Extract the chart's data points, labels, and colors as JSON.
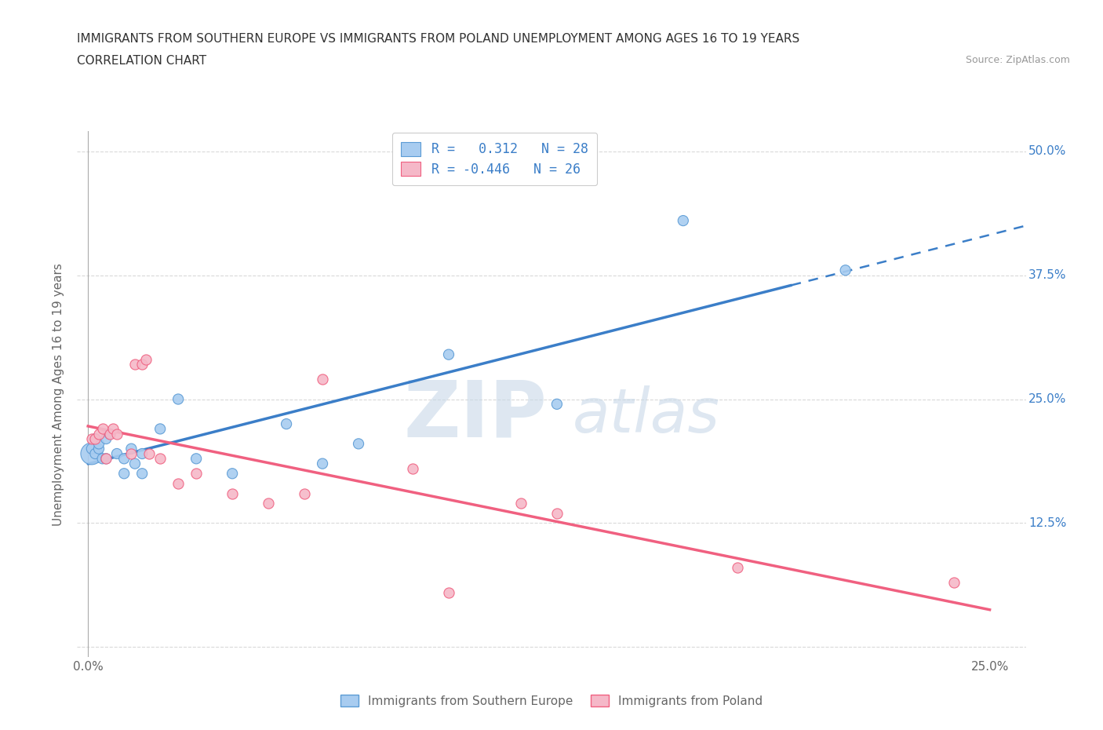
{
  "title_line1": "IMMIGRANTS FROM SOUTHERN EUROPE VS IMMIGRANTS FROM POLAND UNEMPLOYMENT AMONG AGES 16 TO 19 YEARS",
  "title_line2": "CORRELATION CHART",
  "source_text": "Source: ZipAtlas.com",
  "ylabel": "Unemployment Among Ages 16 to 19 years",
  "xlim": [
    0.0,
    0.25
  ],
  "ylim": [
    0.0,
    0.5
  ],
  "blue_R": 0.312,
  "blue_N": 28,
  "pink_R": -0.446,
  "pink_N": 26,
  "blue_color": "#A8CCF0",
  "pink_color": "#F5B8C8",
  "blue_edge_color": "#5B9BD5",
  "pink_edge_color": "#F06080",
  "blue_line_color": "#3B7EC8",
  "pink_line_color": "#F06080",
  "blue_scatter_x": [
    0.001,
    0.001,
    0.002,
    0.002,
    0.003,
    0.003,
    0.004,
    0.005,
    0.005,
    0.006,
    0.008,
    0.01,
    0.01,
    0.012,
    0.013,
    0.015,
    0.015,
    0.02,
    0.025,
    0.03,
    0.04,
    0.055,
    0.065,
    0.075,
    0.1,
    0.13,
    0.165,
    0.21
  ],
  "blue_scatter_y": [
    0.195,
    0.2,
    0.195,
    0.21,
    0.2,
    0.205,
    0.19,
    0.19,
    0.21,
    0.215,
    0.195,
    0.175,
    0.19,
    0.2,
    0.185,
    0.175,
    0.195,
    0.22,
    0.25,
    0.19,
    0.175,
    0.225,
    0.185,
    0.205,
    0.295,
    0.245,
    0.43,
    0.38
  ],
  "pink_scatter_x": [
    0.001,
    0.002,
    0.003,
    0.004,
    0.005,
    0.006,
    0.007,
    0.008,
    0.012,
    0.013,
    0.015,
    0.016,
    0.017,
    0.02,
    0.025,
    0.03,
    0.04,
    0.05,
    0.06,
    0.065,
    0.09,
    0.1,
    0.12,
    0.13,
    0.18,
    0.24
  ],
  "pink_scatter_y": [
    0.21,
    0.21,
    0.215,
    0.22,
    0.19,
    0.215,
    0.22,
    0.215,
    0.195,
    0.285,
    0.285,
    0.29,
    0.195,
    0.19,
    0.165,
    0.175,
    0.155,
    0.145,
    0.155,
    0.27,
    0.18,
    0.055,
    0.145,
    0.135,
    0.08,
    0.065
  ],
  "legend_label_blue": "Immigrants from Southern Europe",
  "legend_label_pink": "Immigrants from Poland",
  "background_color": "#FFFFFF",
  "grid_color": "#D0D0D0",
  "watermark_color": "#C8D8E8"
}
